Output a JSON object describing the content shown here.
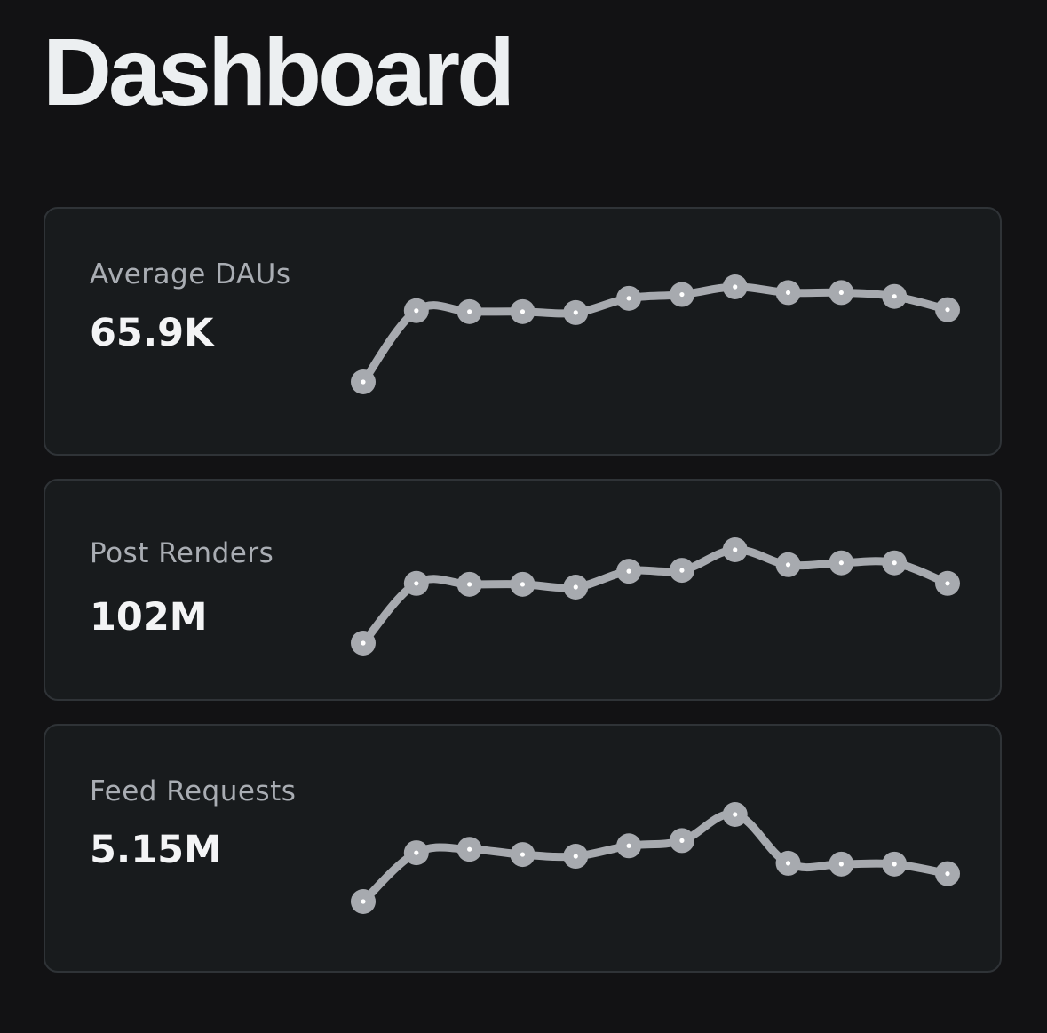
{
  "header": {
    "title": "Dashboard"
  },
  "colors": {
    "background": "#121214",
    "card_background": "#181b1d",
    "card_border": "#2f3337",
    "sparkline": "#a7aaaf",
    "label": "#a9adb3",
    "value": "#f3f4f5"
  },
  "cards": [
    {
      "label": "Average DAUs",
      "value": "65.9K"
    },
    {
      "label": "Post Renders",
      "value": "102M"
    },
    {
      "label": "Feed Requests",
      "value": "5.15M"
    }
  ],
  "chart_data": [
    {
      "type": "line",
      "name": "Average DAUs",
      "values": [
        0,
        75,
        74,
        74,
        73,
        88,
        92,
        100,
        94,
        94,
        90,
        76
      ]
    },
    {
      "type": "line",
      "name": "Post Renders",
      "values": [
        0,
        64,
        63,
        63,
        60,
        77,
        78,
        100,
        84,
        86,
        86,
        64
      ]
    },
    {
      "type": "line",
      "name": "Feed Requests",
      "values": [
        0,
        56,
        60,
        54,
        52,
        64,
        70,
        100,
        44,
        43,
        43,
        32
      ]
    }
  ]
}
